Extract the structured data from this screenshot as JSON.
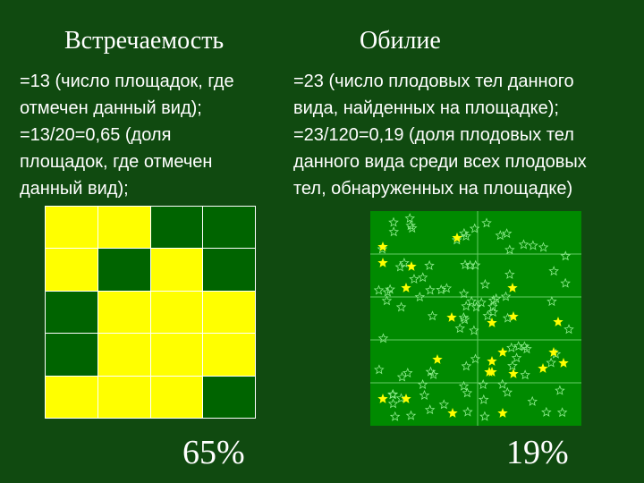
{
  "left": {
    "title": "Встречаемость",
    "lines": [
      "=13 (число площадок, где",
      "отмечен данный вид);",
      "=13/20=0,65 (доля",
      "площадок, где отмечен",
      "данный вид);"
    ],
    "grid": {
      "rows": 5,
      "cols": 4,
      "cells": [
        [
          1,
          1,
          0,
          0
        ],
        [
          1,
          0,
          1,
          0
        ],
        [
          0,
          1,
          1,
          1
        ],
        [
          0,
          1,
          1,
          1
        ],
        [
          1,
          1,
          1,
          0
        ]
      ]
    },
    "percent": "65%"
  },
  "right": {
    "title": "Обилие",
    "lines": [
      "=23 (число плодовых тел данного",
      "вида, найденных на площадке);",
      "=23/120=0,19 (доля плодовых тел",
      "данного вида среди всех плодовых",
      "тел, обнаруженных на площадке)"
    ],
    "percent": "19%"
  },
  "colors": {
    "background": "#104a10",
    "occupied": "#ffff00",
    "empty": "#006400",
    "plot": "#008a00",
    "star_filled": "#ffff00",
    "star_outline": "#90ee90"
  }
}
